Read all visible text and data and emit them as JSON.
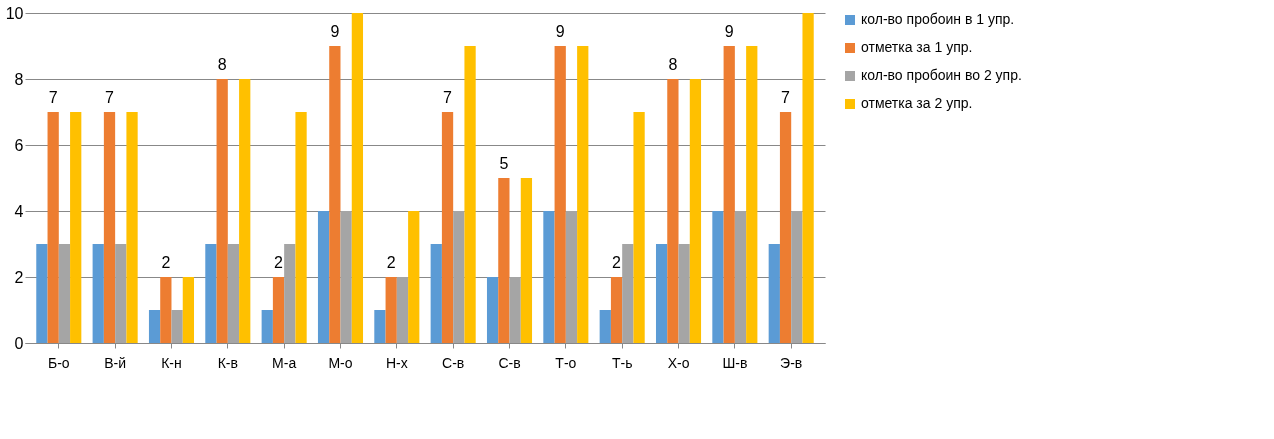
{
  "chart_data": {
    "type": "bar",
    "categories": [
      "Б-о",
      "В-й",
      "К-н",
      "К-в",
      "М-а",
      "М-о",
      "Н-х",
      "С-в",
      "С-в",
      "Т-о",
      "Т-ь",
      "Х-о",
      "Ш-в",
      "Э-в"
    ],
    "series": [
      {
        "name": "кол-во пробоин в 1 упр.",
        "color": "#5b9bd5",
        "values": [
          3,
          3,
          1,
          3,
          1,
          4,
          1,
          3,
          2,
          4,
          1,
          3,
          4,
          3
        ]
      },
      {
        "name": "отметка за 1 упр.",
        "color": "#ed7d31",
        "values": [
          7,
          7,
          2,
          8,
          2,
          9,
          2,
          7,
          5,
          9,
          2,
          8,
          9,
          7
        ],
        "value_labels": [
          "7",
          "7",
          "2",
          "8",
          "2",
          "9",
          "2",
          "7",
          "5",
          "9",
          "2",
          "8",
          "9",
          "7"
        ]
      },
      {
        "name": "кол-во пробоин во 2 упр.",
        "color": "#a5a5a5",
        "values": [
          3,
          3,
          1,
          3,
          3,
          4,
          2,
          4,
          2,
          4,
          3,
          3,
          4,
          4
        ]
      },
      {
        "name": "отметка за 2 упр.",
        "color": "#ffc000",
        "values": [
          7,
          7,
          2,
          8,
          7,
          10,
          4,
          9,
          5,
          9,
          7,
          8,
          9,
          10
        ]
      }
    ],
    "ylim": [
      0,
      10
    ],
    "yticks": [
      0,
      2,
      4,
      6,
      8,
      10
    ],
    "grid": "y",
    "legend": "right"
  }
}
